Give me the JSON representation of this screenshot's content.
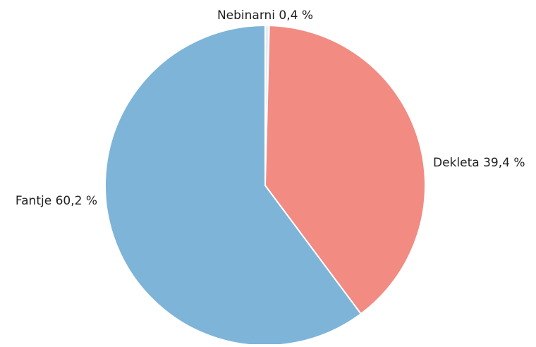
{
  "chart_data": {
    "type": "pie",
    "slices": [
      {
        "label": "Nebinarni 0,4 %",
        "name": "Nebinarni",
        "value": 0.4,
        "color": "#e2f0f8"
      },
      {
        "label": "Dekleta 39,4 %",
        "name": "Dekleta",
        "value": 39.4,
        "color": "#f28b82"
      },
      {
        "label": "Fantje 60,2 %",
        "name": "Fantje",
        "value": 60.2,
        "color": "#7eb4d8"
      }
    ],
    "start_angle_deg": 90,
    "direction": "clockwise",
    "edge_color": "#ffffff",
    "title": "",
    "legend": "none"
  }
}
